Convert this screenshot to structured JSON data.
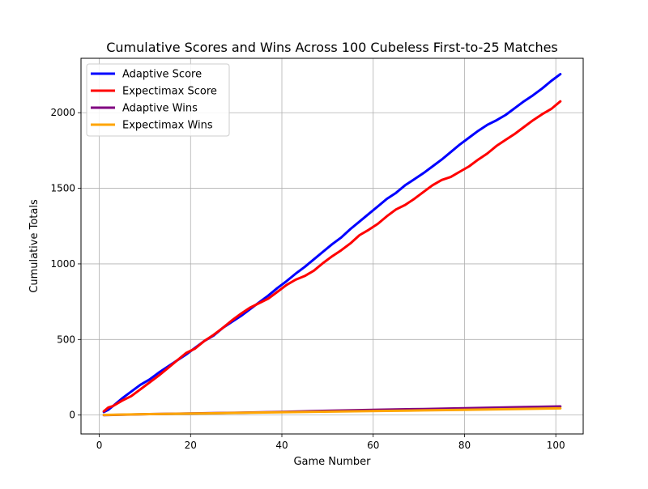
{
  "chart_data": {
    "type": "line",
    "title": "Cumulative Scores and Wins Across 100 Cubeless First-to-25 Matches",
    "xlabel": "Game Number",
    "ylabel": "Cumulative Totals",
    "xlim": [
      -4,
      106
    ],
    "ylim": [
      -125,
      2360
    ],
    "xticks": [
      0,
      20,
      40,
      60,
      80,
      100
    ],
    "yticks": [
      0,
      500,
      1000,
      1500,
      2000
    ],
    "grid": true,
    "legend_position": "top-left",
    "series": [
      {
        "name": "Adaptive Score",
        "color": "#0000ff",
        "x": [
          1,
          2,
          3,
          5,
          7,
          9,
          11,
          13,
          15,
          17,
          19,
          21,
          23,
          25,
          27,
          29,
          31,
          33,
          35,
          37,
          39,
          41,
          43,
          45,
          47,
          49,
          51,
          53,
          55,
          57,
          59,
          61,
          63,
          65,
          67,
          69,
          71,
          73,
          75,
          77,
          79,
          81,
          83,
          85,
          87,
          89,
          91,
          93,
          95,
          97,
          99,
          101
        ],
        "values": [
          20,
          35,
          60,
          110,
          155,
          200,
          235,
          280,
          320,
          360,
          400,
          445,
          490,
          525,
          575,
          615,
          655,
          700,
          745,
          790,
          840,
          885,
          935,
          980,
          1030,
          1080,
          1130,
          1175,
          1230,
          1280,
          1330,
          1380,
          1430,
          1470,
          1520,
          1560,
          1600,
          1645,
          1690,
          1740,
          1790,
          1835,
          1880,
          1920,
          1950,
          1985,
          2030,
          2075,
          2115,
          2160,
          2210,
          2255
        ]
      },
      {
        "name": "Expectimax Score",
        "color": "#ff0000",
        "x": [
          1,
          2,
          3,
          5,
          7,
          9,
          11,
          13,
          15,
          17,
          19,
          21,
          23,
          25,
          27,
          29,
          31,
          33,
          35,
          37,
          39,
          41,
          43,
          45,
          47,
          49,
          51,
          53,
          55,
          57,
          59,
          61,
          63,
          65,
          67,
          69,
          71,
          73,
          75,
          77,
          79,
          81,
          83,
          85,
          87,
          89,
          91,
          93,
          95,
          97,
          99,
          101
        ],
        "values": [
          25,
          50,
          60,
          95,
          125,
          170,
          215,
          260,
          310,
          360,
          410,
          440,
          490,
          530,
          575,
          625,
          670,
          710,
          740,
          770,
          815,
          860,
          895,
          920,
          955,
          1005,
          1050,
          1090,
          1135,
          1190,
          1225,
          1265,
          1315,
          1360,
          1390,
          1430,
          1475,
          1520,
          1555,
          1575,
          1610,
          1645,
          1690,
          1730,
          1780,
          1820,
          1860,
          1905,
          1950,
          1990,
          2025,
          2075
        ]
      },
      {
        "name": "Adaptive Wins",
        "color": "#800080",
        "x": [
          1,
          11,
          21,
          31,
          41,
          51,
          61,
          71,
          81,
          91,
          101
        ],
        "values": [
          0,
          6,
          11,
          16,
          22,
          29,
          35,
          40,
          46,
          52,
          57
        ]
      },
      {
        "name": "Expectimax Wins",
        "color": "#ffa500",
        "x": [
          1,
          11,
          21,
          31,
          41,
          51,
          61,
          71,
          81,
          91,
          101
        ],
        "values": [
          1,
          6,
          10,
          15,
          19,
          23,
          27,
          31,
          35,
          40,
          44
        ]
      }
    ]
  }
}
